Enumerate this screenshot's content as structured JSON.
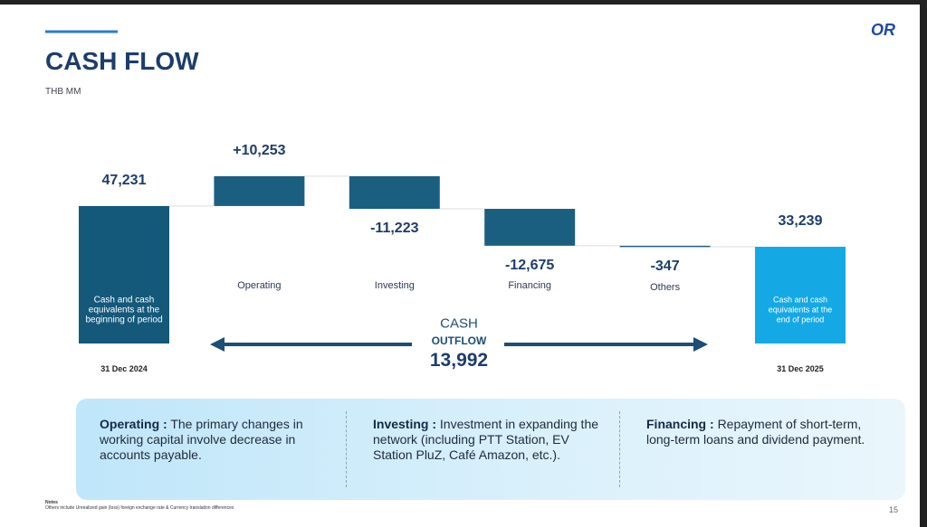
{
  "header": {
    "title": "CASH FLOW",
    "unit": "THB MM",
    "logo": "OR"
  },
  "chart_data": {
    "type": "waterfall",
    "categories": [
      "Cash and cash equivalents at the beginning of period",
      "Operating",
      "Investing",
      "Financing",
      "Others",
      "Cash and cash equivalents at the end of period"
    ],
    "dates": [
      "31 Dec 2024",
      null,
      null,
      null,
      null,
      "31 Dec 2025"
    ],
    "values": [
      47231,
      10253,
      -11223,
      -12675,
      -347,
      33239
    ],
    "value_labels": [
      "47,231",
      "+10,253",
      "-11,223",
      "-12,675",
      "-347",
      "33,239"
    ],
    "colors": [
      "#14587a",
      "#1b5f80",
      "#1b5f80",
      "#1b5f80",
      "#1b5f80",
      "#14a9e4"
    ],
    "annotation": {
      "line1": "CASH",
      "line2": "OUTFLOW",
      "amount": "13,992"
    }
  },
  "notes": [
    {
      "term": "Operating :",
      "text": "The primary changes in working capital involve decrease in accounts payable."
    },
    {
      "term": "Investing :",
      "text": "Investment in expanding the network (including PTT Station, EV Station PluZ, Café Amazon, etc.)."
    },
    {
      "term": "Financing :",
      "text": "Repayment of short-term, long-term loans and dividend payment."
    }
  ],
  "footnote": {
    "title": "Notes",
    "text": "Others include Unrealized gain (loss) foreign exchange rate & Currency translation differences"
  },
  "page_number": "15"
}
